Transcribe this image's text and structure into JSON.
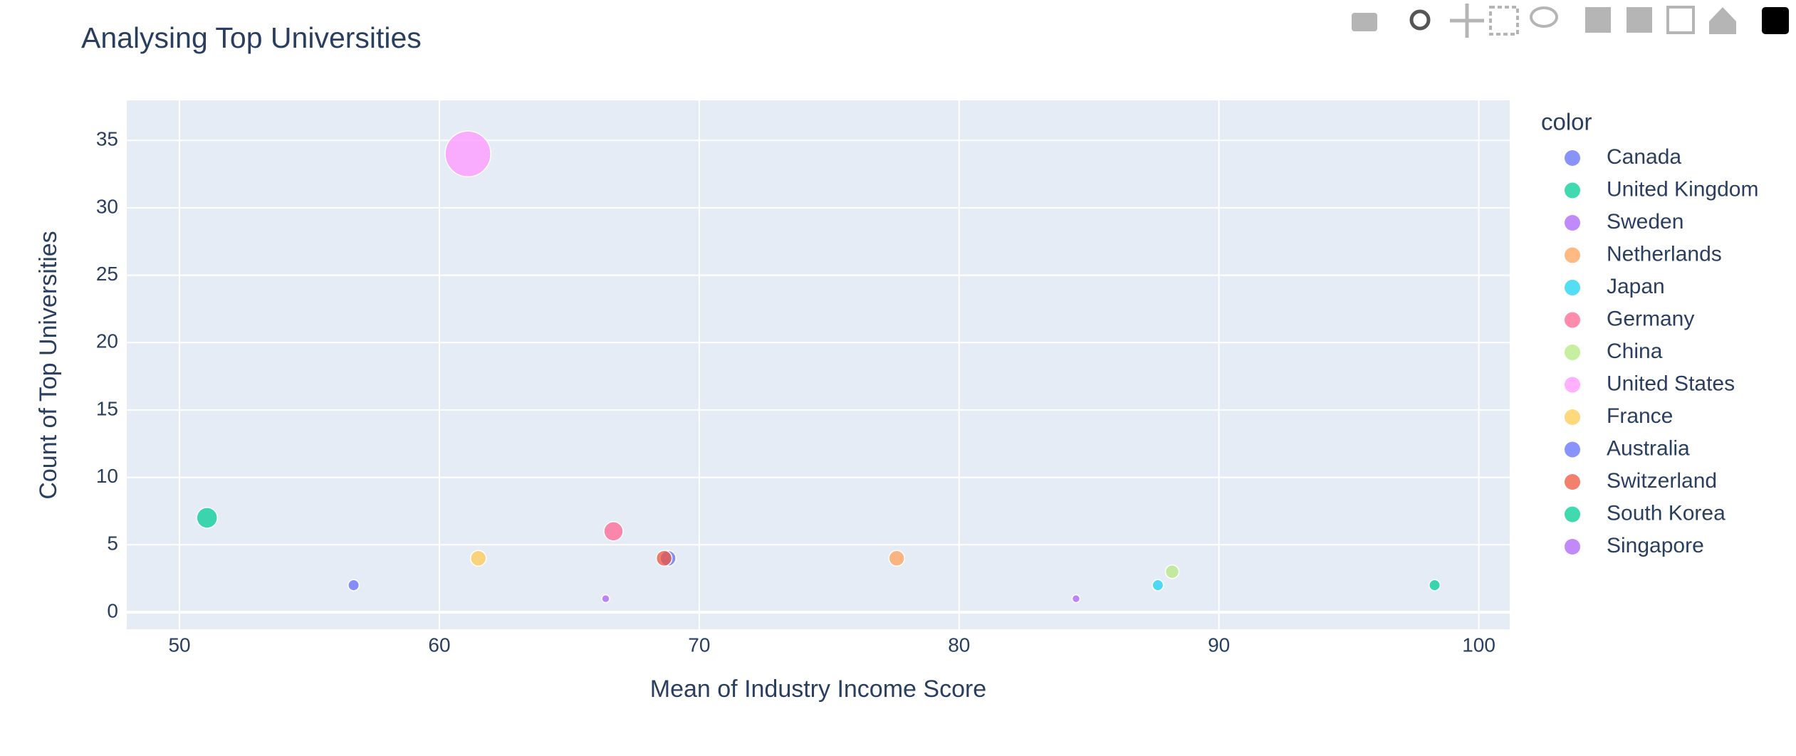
{
  "chart_data": {
    "type": "scatter",
    "title": "Analysing Top Universities",
    "xlabel": "Mean of Industry Income Score",
    "ylabel": "Count of Top Universities",
    "legend_title": "color",
    "legend": "right",
    "grid": true,
    "xlim": [
      47.97,
      101.19
    ],
    "ylim": [
      -1.27,
      37.97
    ],
    "xticks": [
      50,
      60,
      70,
      80,
      90,
      100
    ],
    "yticks": [
      0,
      5,
      10,
      15,
      20,
      25,
      30,
      35
    ],
    "series": [
      {
        "name": "Canada",
        "color": "#636efa",
        "x": [
          68.8
        ],
        "values": [
          4
        ]
      },
      {
        "name": "United Kingdom",
        "color": "#00cc96",
        "x": [
          51.06
        ],
        "values": [
          7
        ]
      },
      {
        "name": "Sweden",
        "color": "#ab63fa",
        "x": [
          66.4
        ],
        "values": [
          1
        ]
      },
      {
        "name": "Netherlands",
        "color": "#FFA15A",
        "x": [
          77.6
        ],
        "values": [
          4
        ]
      },
      {
        "name": "Japan",
        "color": "#19d3f3",
        "x": [
          87.65
        ],
        "values": [
          2
        ]
      },
      {
        "name": "Germany",
        "color": "#FF6692",
        "x": [
          66.7
        ],
        "values": [
          6
        ]
      },
      {
        "name": "China",
        "color": "#B6E880",
        "x": [
          88.2
        ],
        "values": [
          3
        ]
      },
      {
        "name": "United States",
        "color": "#FF97FF",
        "x": [
          61.1
        ],
        "values": [
          34
        ]
      },
      {
        "name": "France",
        "color": "#FECB52",
        "x": [
          61.5
        ],
        "values": [
          4
        ]
      },
      {
        "name": "Australia",
        "color": "#636efa",
        "x": [
          56.7
        ],
        "values": [
          2
        ]
      },
      {
        "name": "Switzerland",
        "color": "#EF553B",
        "x": [
          68.65
        ],
        "values": [
          4
        ]
      },
      {
        "name": "South Korea",
        "color": "#00cc96",
        "x": [
          98.3
        ],
        "values": [
          2
        ]
      },
      {
        "name": "Singapore",
        "color": "#ab63fa",
        "x": [
          84.5
        ],
        "values": [
          1
        ]
      }
    ]
  }
}
